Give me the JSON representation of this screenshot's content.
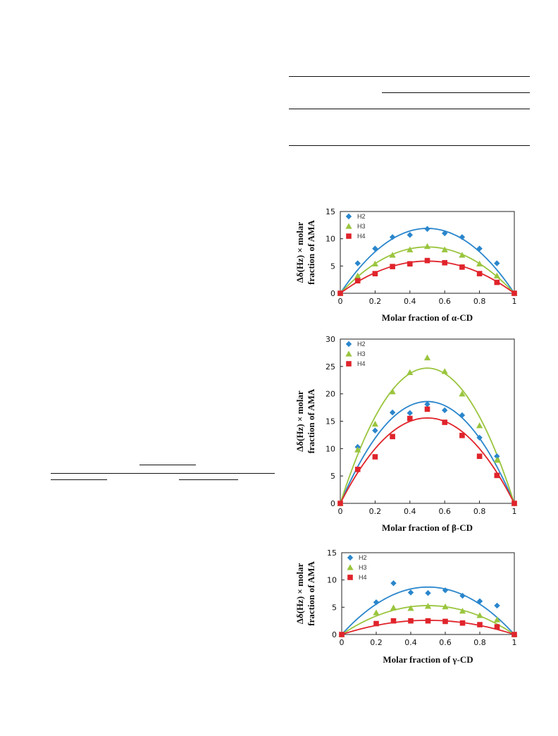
{
  "chart_data": [
    {
      "type": "scatter",
      "xlabel": "Molar fraction of α-CD",
      "ylabel_line1": "Δδ(Hz) × molar",
      "ylabel_line2": "fraction of AMA",
      "xlim": [
        0,
        1
      ],
      "ylim": [
        0,
        15
      ],
      "xticks": [
        0,
        0.2,
        0.4,
        0.6,
        0.8,
        1
      ],
      "xtick_labels": [
        "0",
        "0.2",
        "0.4",
        "0.6",
        "0.8",
        "1"
      ],
      "yticks": [
        0,
        5,
        10,
        15
      ],
      "ytick_labels": [
        "0",
        "5",
        "10",
        "15"
      ],
      "legend_position": "top-left",
      "series": [
        {
          "name": "H2",
          "marker": "diamond",
          "color": "#2a86cc",
          "x": [
            0,
            0.1,
            0.2,
            0.3,
            0.4,
            0.5,
            0.6,
            0.7,
            0.8,
            0.9,
            1
          ],
          "y": [
            0,
            5.5,
            8.2,
            10.3,
            10.7,
            11.8,
            11.0,
            10.3,
            8.2,
            5.5,
            0
          ],
          "fit_peak": 11.9
        },
        {
          "name": "H3",
          "marker": "triangle",
          "color": "#9ac53e",
          "x": [
            0,
            0.1,
            0.2,
            0.3,
            0.4,
            0.5,
            0.6,
            0.7,
            0.8,
            0.9,
            1
          ],
          "y": [
            0,
            3.2,
            5.4,
            7.0,
            8.0,
            8.6,
            8.0,
            7.0,
            5.4,
            3.2,
            0
          ],
          "fit_peak": 8.5
        },
        {
          "name": "H4",
          "marker": "square",
          "color": "#e0242b",
          "x": [
            0,
            0.1,
            0.2,
            0.3,
            0.4,
            0.5,
            0.6,
            0.7,
            0.8,
            0.9,
            1
          ],
          "y": [
            0,
            2.3,
            3.6,
            4.9,
            5.4,
            6.0,
            5.6,
            4.8,
            3.6,
            2.0,
            0
          ],
          "fit_peak": 5.9
        }
      ]
    },
    {
      "type": "scatter",
      "xlabel": "Molar fraction of β-CD",
      "ylabel_line1": "Δδ(Hz) × molar",
      "ylabel_line2": "fraction of AMA",
      "xlim": [
        0,
        1
      ],
      "ylim": [
        0,
        30
      ],
      "xticks": [
        0,
        0.2,
        0.4,
        0.6,
        0.8,
        1
      ],
      "xtick_labels": [
        "0",
        "0.2",
        "0.4",
        "0.6",
        "0.8",
        "1"
      ],
      "yticks": [
        0,
        5,
        10,
        15,
        20,
        25,
        30
      ],
      "ytick_labels": [
        "0",
        "5",
        "10",
        "15",
        "20",
        "25",
        "30"
      ],
      "legend_position": "top-left",
      "series": [
        {
          "name": "H2",
          "marker": "diamond",
          "color": "#2a86cc",
          "x": [
            0,
            0.1,
            0.2,
            0.3,
            0.4,
            0.5,
            0.6,
            0.7,
            0.8,
            0.9,
            1
          ],
          "y": [
            0,
            10.3,
            13.3,
            16.6,
            16.5,
            18.1,
            17.0,
            16.1,
            12.0,
            8.6,
            0
          ],
          "fit_peak": 18.6
        },
        {
          "name": "H3",
          "marker": "triangle",
          "color": "#9ac53e",
          "x": [
            0,
            0.1,
            0.2,
            0.3,
            0.4,
            0.5,
            0.6,
            0.7,
            0.8,
            0.9,
            1
          ],
          "y": [
            0,
            9.8,
            14.5,
            20.4,
            23.9,
            26.6,
            24.1,
            20.0,
            14.2,
            7.9,
            0
          ],
          "fit_peak": 24.7
        },
        {
          "name": "H4",
          "marker": "square",
          "color": "#e0242b",
          "x": [
            0,
            0.1,
            0.2,
            0.3,
            0.4,
            0.5,
            0.6,
            0.7,
            0.8,
            0.9,
            1
          ],
          "y": [
            0,
            6.2,
            8.5,
            12.2,
            15.5,
            17.2,
            14.8,
            12.4,
            8.6,
            5.1,
            0
          ],
          "fit_peak": 15.6
        }
      ]
    },
    {
      "type": "scatter",
      "xlabel": "Molar fraction of γ-CD",
      "ylabel_line1": "Δδ(Hz) × molar",
      "ylabel_line2": "fraction of AMA",
      "xlim": [
        0,
        1
      ],
      "ylim": [
        0,
        15
      ],
      "xticks": [
        0,
        0.2,
        0.4,
        0.6,
        0.8,
        1
      ],
      "xtick_labels": [
        "0",
        "0.2",
        "0.4",
        "0.6",
        "0.8",
        "1"
      ],
      "yticks": [
        0,
        5,
        10,
        15
      ],
      "ytick_labels": [
        "0",
        "5",
        "10",
        "15"
      ],
      "legend_position": "top-left",
      "series": [
        {
          "name": "H2",
          "marker": "diamond",
          "color": "#2a86cc",
          "x": [
            0,
            0.2,
            0.3,
            0.4,
            0.5,
            0.6,
            0.7,
            0.8,
            0.9,
            1
          ],
          "y": [
            0,
            5.9,
            9.4,
            7.7,
            7.6,
            8.1,
            7.1,
            6.1,
            5.3,
            0
          ],
          "fit_peak": 8.7
        },
        {
          "name": "H3",
          "marker": "triangle",
          "color": "#9ac53e",
          "x": [
            0,
            0.2,
            0.3,
            0.4,
            0.5,
            0.6,
            0.7,
            0.8,
            0.9,
            1
          ],
          "y": [
            0,
            4.0,
            4.9,
            4.8,
            5.2,
            5.1,
            4.3,
            3.5,
            2.7,
            0
          ],
          "fit_peak": 5.3
        },
        {
          "name": "H4",
          "marker": "square",
          "color": "#e0242b",
          "x": [
            0,
            0.2,
            0.3,
            0.4,
            0.5,
            0.6,
            0.7,
            0.8,
            0.9,
            1
          ],
          "y": [
            0,
            2.0,
            2.5,
            2.5,
            2.5,
            2.4,
            2.1,
            1.8,
            1.4,
            0
          ],
          "fit_peak": 2.6
        }
      ]
    }
  ]
}
